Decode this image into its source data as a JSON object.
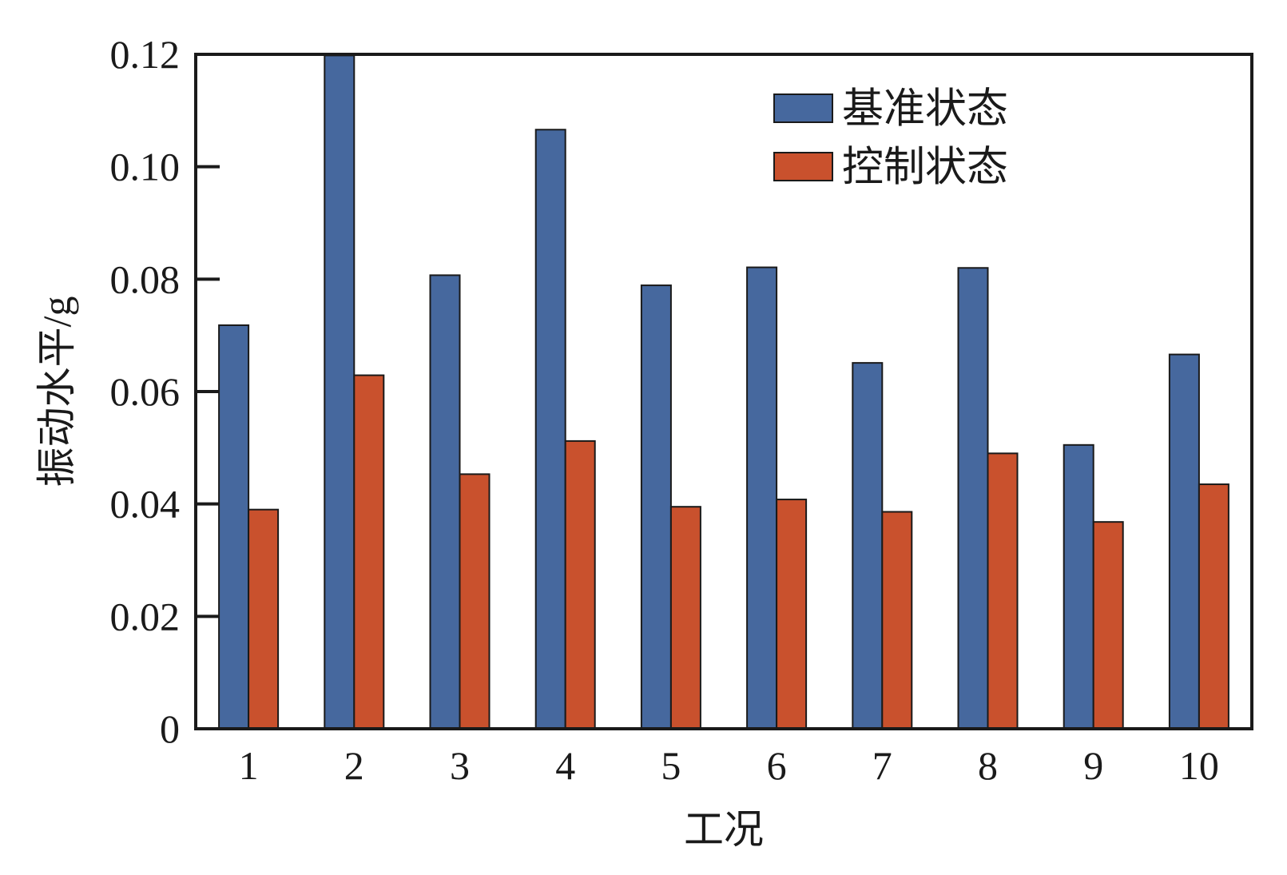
{
  "chart_data": {
    "type": "bar",
    "title": "",
    "xlabel": "工况",
    "ylabel": "振动水平/g",
    "categories": [
      "1",
      "2",
      "3",
      "4",
      "5",
      "6",
      "7",
      "8",
      "9",
      "10"
    ],
    "series": [
      {
        "name": "基准状态",
        "color": "#46689e",
        "values": [
          0.0718,
          0.1198,
          0.0807,
          0.1066,
          0.0789,
          0.0821,
          0.0651,
          0.082,
          0.0505,
          0.0666
        ]
      },
      {
        "name": "控制状态",
        "color": "#c9512d",
        "values": [
          0.039,
          0.0629,
          0.0453,
          0.0512,
          0.0395,
          0.0408,
          0.0386,
          0.049,
          0.0368,
          0.0435
        ]
      }
    ],
    "ylim": [
      0,
      0.12
    ],
    "yticks": [
      "0",
      "0.02",
      "0.04",
      "0.06",
      "0.08",
      "0.10",
      "0.12"
    ],
    "legend_position": "top-right",
    "grid": false
  }
}
